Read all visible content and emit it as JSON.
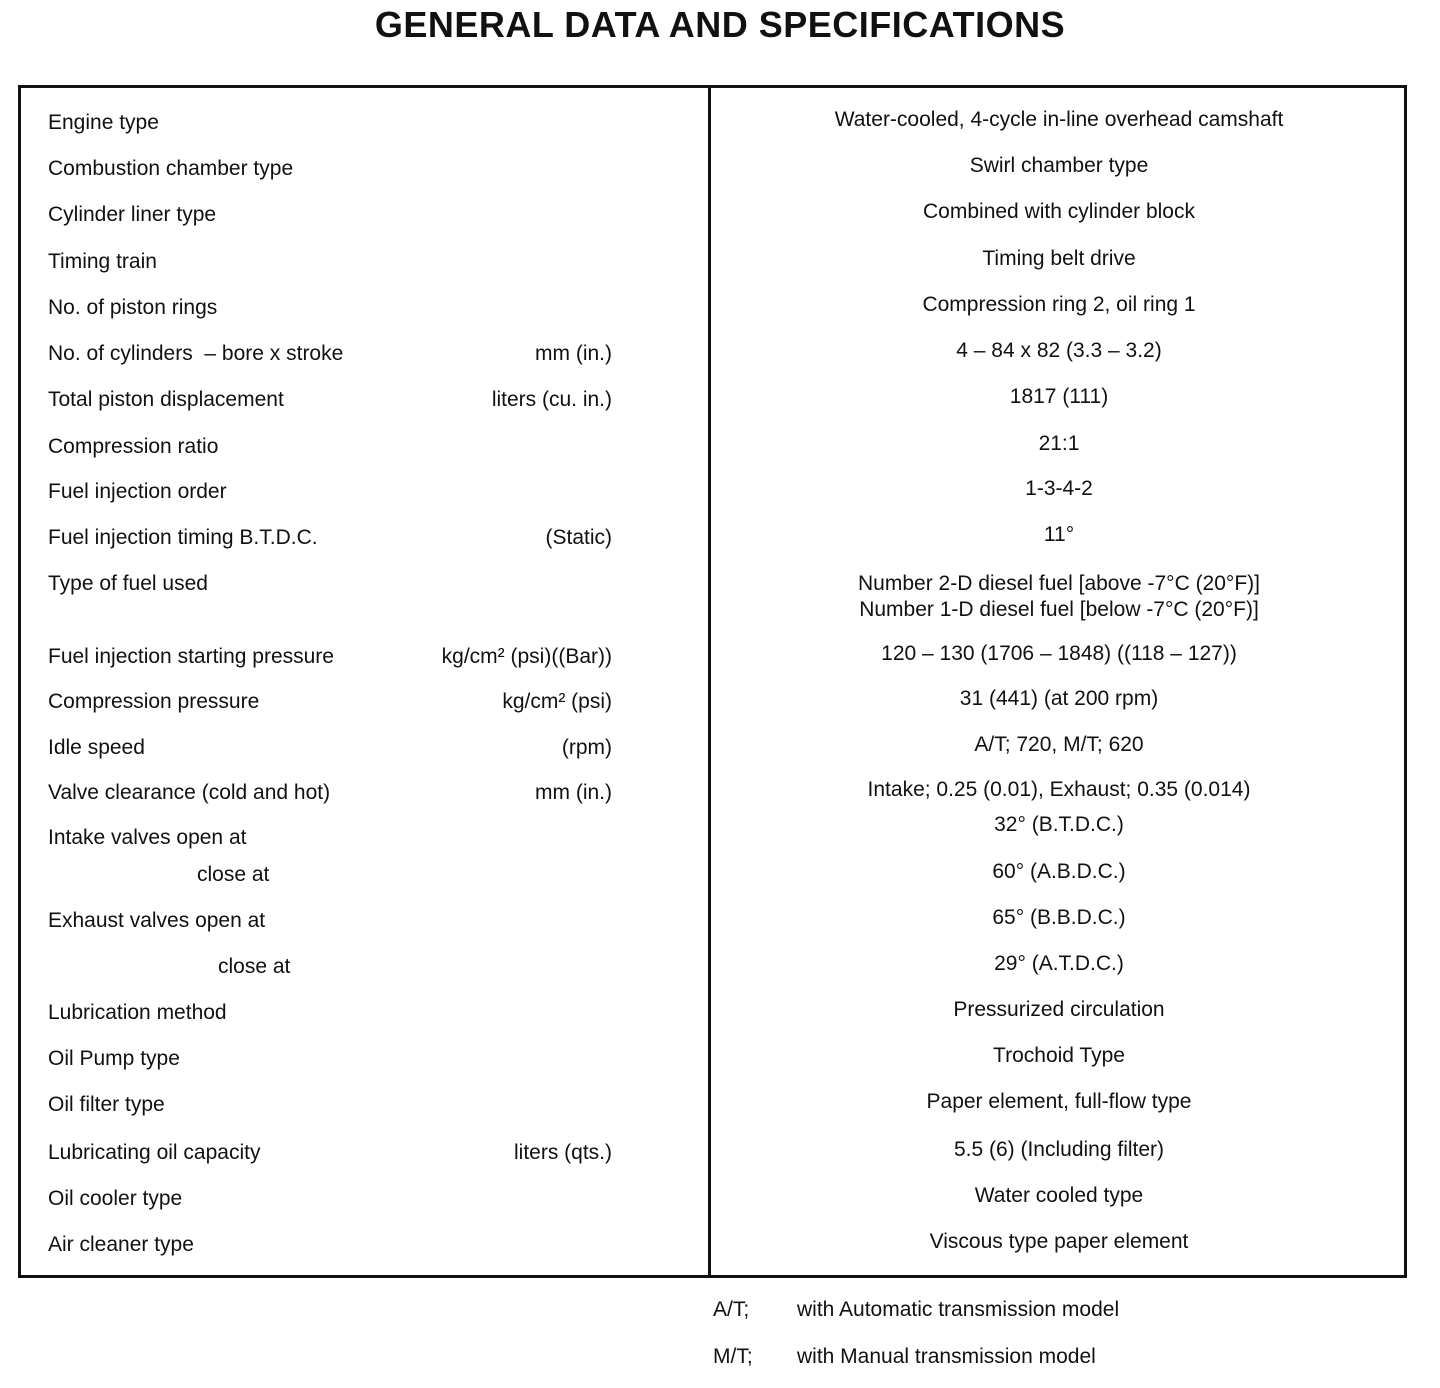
{
  "header": {
    "title": "GENERAL DATA AND SPECIFICATIONS"
  },
  "table": {
    "rows": [
      {
        "label": "Engine type",
        "value": "Water-cooled, 4-cycle in-line overhead camshaft"
      },
      {
        "label": "Combustion chamber type",
        "value": "Swirl chamber type"
      },
      {
        "label": "Cylinder liner type",
        "value": "Combined with cylinder block"
      },
      {
        "label": "Timing train",
        "value": "Timing belt drive"
      },
      {
        "label": "No. of piston rings",
        "value": "Compression ring 2, oil ring 1"
      },
      {
        "label": "No. of cylinders  – bore x stroke",
        "unit": "mm (in.)",
        "value": "4 – 84 x 82 (3.3 – 3.2)"
      },
      {
        "label": "Total piston displacement",
        "unit": "liters (cu. in.)",
        "value": "1817 (111)"
      },
      {
        "label": "Compression ratio",
        "value": "21:1"
      },
      {
        "label": "Fuel injection order",
        "value": "1-3-4-2"
      },
      {
        "label": "Fuel injection timing B.T.D.C.",
        "unit": "(Static)",
        "value": "11°"
      },
      {
        "label": "Type of fuel used",
        "value": [
          "Number 2-D diesel fuel [above -7°C (20°F)]",
          "Number 1-D diesel fuel [below -7°C (20°F)]"
        ]
      },
      {
        "label": "Fuel injection starting pressure",
        "unit": "kg/cm² (psi)((Bar))",
        "value": "120 – 130 (1706 – 1848) ((118 – 127))"
      },
      {
        "label": "Compression pressure",
        "unit": "kg/cm² (psi)",
        "value": "31 (441) (at 200 rpm)"
      },
      {
        "label": "Idle speed",
        "unit": "(rpm)",
        "value": "A/T; 720, M/T; 620"
      },
      {
        "label": "Valve clearance (cold and hot)",
        "unit": "mm (in.)",
        "value": "Intake; 0.25 (0.01), Exhaust; 0.35 (0.014)"
      },
      {
        "label": "Intake valves open at",
        "value": "32° (B.T.D.C.)"
      },
      {
        "label": "close at",
        "value": "60° (A.B.D.C.)"
      },
      {
        "label": "Exhaust valves open at",
        "value": "65° (B.B.D.C.)"
      },
      {
        "label": "close at",
        "value": "29° (A.T.D.C.)"
      },
      {
        "label": "Lubrication method",
        "value": "Pressurized circulation"
      },
      {
        "label": "Oil Pump type",
        "value": "Trochoid Type"
      },
      {
        "label": "Oil filter type",
        "value": "Paper element, full-flow type"
      },
      {
        "label": "Lubricating oil capacity",
        "unit": "liters (qts.)",
        "value": "5.5 (6) (Including filter)"
      },
      {
        "label": "Oil cooler type",
        "value": "Water cooled type"
      },
      {
        "label": "Air cleaner type",
        "value": "Viscous type paper element"
      }
    ]
  },
  "footnotes": [
    {
      "abbr": "A/T;",
      "text": "with Automatic transmission model"
    },
    {
      "abbr": "M/T;",
      "text": "with Manual transmission model"
    }
  ]
}
